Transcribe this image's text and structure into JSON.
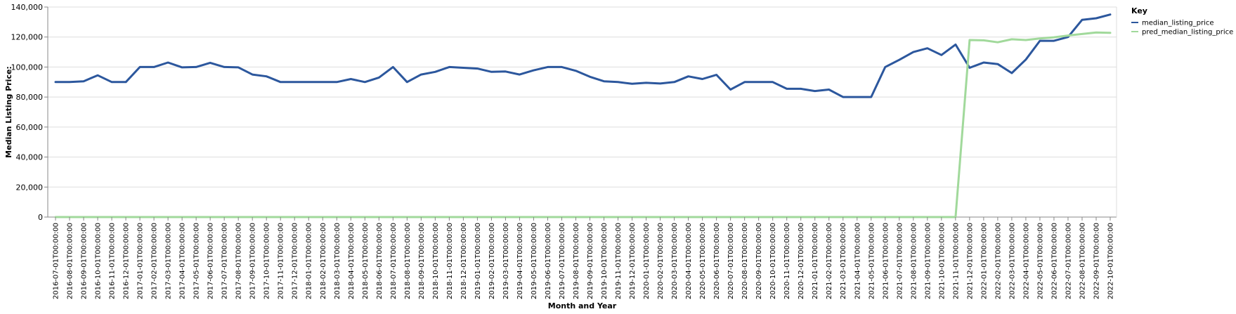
{
  "chart_data": {
    "type": "line",
    "title": "",
    "xlabel": "Month and Year",
    "ylabel": "Median Listing Price",
    "ylim": [
      0,
      140000
    ],
    "y_ticks": [
      0,
      20000,
      40000,
      60000,
      80000,
      100000,
      120000,
      140000
    ],
    "y_tick_labels": [
      "0",
      "20,000",
      "40,000",
      "60,000",
      "80,000",
      "100,000",
      "120,000",
      "140,000"
    ],
    "grid": true,
    "legend_position": "top-right",
    "legend_title": "Key",
    "x": [
      "2016-07-01T00:00:00",
      "2016-08-01T00:00:00",
      "2016-09-01T00:00:00",
      "2016-10-01T00:00:00",
      "2016-11-01T00:00:00",
      "2016-12-01T00:00:00",
      "2017-01-01T00:00:00",
      "2017-02-01T00:00:00",
      "2017-03-01T00:00:00",
      "2017-04-01T00:00:00",
      "2017-05-01T00:00:00",
      "2017-06-01T00:00:00",
      "2017-07-01T00:00:00",
      "2017-08-01T00:00:00",
      "2017-09-01T00:00:00",
      "2017-10-01T00:00:00",
      "2017-11-01T00:00:00",
      "2017-12-01T00:00:00",
      "2018-01-01T00:00:00",
      "2018-02-01T00:00:00",
      "2018-03-01T00:00:00",
      "2018-04-01T00:00:00",
      "2018-05-01T00:00:00",
      "2018-06-01T00:00:00",
      "2018-07-01T00:00:00",
      "2018-08-01T00:00:00",
      "2018-09-01T00:00:00",
      "2018-10-01T00:00:00",
      "2018-11-01T00:00:00",
      "2018-12-01T00:00:00",
      "2019-01-01T00:00:00",
      "2019-02-01T00:00:00",
      "2019-03-01T00:00:00",
      "2019-04-01T00:00:00",
      "2019-05-01T00:00:00",
      "2019-06-01T00:00:00",
      "2019-07-01T00:00:00",
      "2019-08-01T00:00:00",
      "2019-09-01T00:00:00",
      "2019-10-01T00:00:00",
      "2019-11-01T00:00:00",
      "2019-12-01T00:00:00",
      "2020-01-01T00:00:00",
      "2020-02-01T00:00:00",
      "2020-03-01T00:00:00",
      "2020-04-01T00:00:00",
      "2020-05-01T00:00:00",
      "2020-06-01T00:00:00",
      "2020-07-01T00:00:00",
      "2020-08-01T00:00:00",
      "2020-09-01T00:00:00",
      "2020-10-01T00:00:00",
      "2020-11-01T00:00:00",
      "2020-12-01T00:00:00",
      "2021-01-01T00:00:00",
      "2021-02-01T00:00:00",
      "2021-03-01T00:00:00",
      "2021-04-01T00:00:00",
      "2021-05-01T00:00:00",
      "2021-06-01T00:00:00",
      "2021-07-01T00:00:00",
      "2021-08-01T00:00:00",
      "2021-09-01T00:00:00",
      "2021-10-01T00:00:00",
      "2021-11-01T00:00:00",
      "2021-12-01T00:00:00",
      "2022-01-01T00:00:00",
      "2022-02-01T00:00:00",
      "2022-03-01T00:00:00",
      "2022-04-01T00:00:00",
      "2022-05-01T00:00:00",
      "2022-06-01T00:00:00",
      "2022-07-01T00:00:00",
      "2022-08-01T00:00:00",
      "2022-09-01T00:00:00",
      "2022-10-01T00:00:00"
    ],
    "series": [
      {
        "name": "median_listing_price",
        "color": "#2c579d",
        "values": [
          90000,
          90000,
          90500,
          94500,
          90000,
          90000,
          100000,
          100000,
          103000,
          99800,
          100000,
          102800,
          100000,
          99800,
          95000,
          93800,
          90000,
          90000,
          90000,
          90000,
          90000,
          92000,
          90000,
          93000,
          100000,
          90000,
          95000,
          96800,
          100000,
          99500,
          99000,
          96800,
          97000,
          95000,
          97800,
          100000,
          100000,
          97500,
          93500,
          90500,
          90000,
          88800,
          89500,
          89000,
          90000,
          93800,
          92000,
          94800,
          85000,
          90000,
          90000,
          90000,
          85500,
          85500,
          84000,
          85000,
          80000,
          80000,
          80000,
          100000,
          104800,
          110000,
          112500,
          108000,
          115000,
          99500,
          103000,
          102000,
          96000,
          105000,
          117500,
          117500,
          120000,
          131500,
          132500,
          135000
        ]
      },
      {
        "name": "pred_median_listing_price",
        "color": "#a1d99b",
        "values": [
          0,
          0,
          0,
          0,
          0,
          0,
          0,
          0,
          0,
          0,
          0,
          0,
          0,
          0,
          0,
          0,
          0,
          0,
          0,
          0,
          0,
          0,
          0,
          0,
          0,
          0,
          0,
          0,
          0,
          0,
          0,
          0,
          0,
          0,
          0,
          0,
          0,
          0,
          0,
          0,
          0,
          0,
          0,
          0,
          0,
          0,
          0,
          0,
          0,
          0,
          0,
          0,
          0,
          0,
          0,
          0,
          0,
          0,
          0,
          0,
          0,
          0,
          0,
          0,
          0,
          118000,
          117800,
          116500,
          118500,
          118000,
          119000,
          119800,
          121000,
          122000,
          123000,
          122800
        ]
      }
    ]
  }
}
